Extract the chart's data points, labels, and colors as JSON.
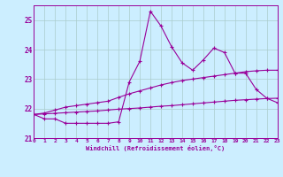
{
  "xlabel": "Windchill (Refroidissement éolien,°C)",
  "background_color": "#cceeff",
  "grid_color": "#aacccc",
  "line_color": "#990099",
  "x_values": [
    0,
    1,
    2,
    3,
    4,
    5,
    6,
    7,
    8,
    9,
    10,
    11,
    12,
    13,
    14,
    15,
    16,
    17,
    18,
    19,
    20,
    21,
    22,
    23
  ],
  "line1_y": [
    21.8,
    21.65,
    21.65,
    21.5,
    21.5,
    21.5,
    21.5,
    21.5,
    21.55,
    22.9,
    23.6,
    25.3,
    24.8,
    24.1,
    23.55,
    23.3,
    23.65,
    24.05,
    23.9,
    23.2,
    23.2,
    22.65,
    22.35,
    22.2
  ],
  "line2_y": [
    21.8,
    21.85,
    21.95,
    22.05,
    22.1,
    22.15,
    22.2,
    22.25,
    22.38,
    22.5,
    22.6,
    22.7,
    22.8,
    22.88,
    22.95,
    23.0,
    23.05,
    23.1,
    23.15,
    23.2,
    23.25,
    23.28,
    23.3,
    23.3
  ],
  "line3_y": [
    21.8,
    21.82,
    21.84,
    21.86,
    21.88,
    21.9,
    21.92,
    21.95,
    21.98,
    22.0,
    22.02,
    22.05,
    22.08,
    22.1,
    22.13,
    22.16,
    22.19,
    22.22,
    22.25,
    22.28,
    22.3,
    22.32,
    22.34,
    22.35
  ],
  "xlim": [
    0,
    23
  ],
  "ylim": [
    21.0,
    25.5
  ],
  "yticks": [
    21,
    22,
    23,
    24,
    25
  ],
  "xticks": [
    0,
    1,
    2,
    3,
    4,
    5,
    6,
    7,
    8,
    9,
    10,
    11,
    12,
    13,
    14,
    15,
    16,
    17,
    18,
    19,
    20,
    21,
    22,
    23
  ],
  "marker": "+",
  "markersize": 3.5,
  "linewidth": 0.8
}
